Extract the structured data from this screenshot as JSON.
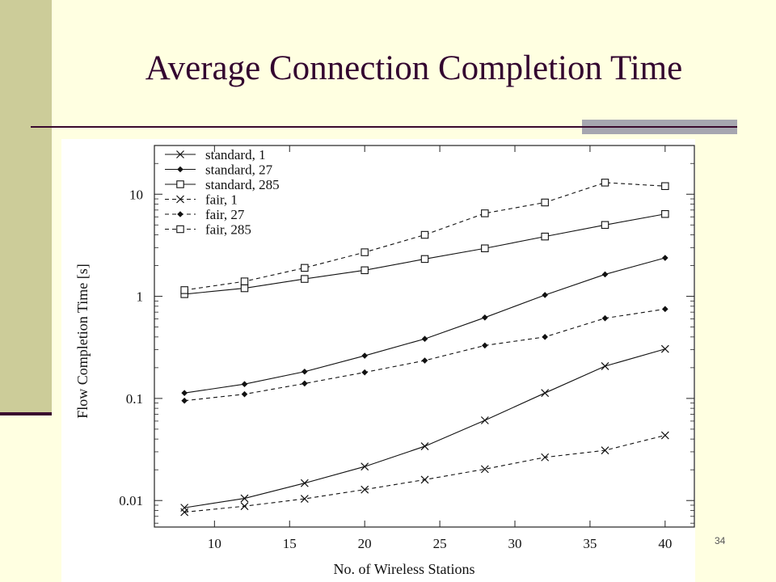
{
  "slide": {
    "title": "Average Connection Completion Time",
    "page_number": "34",
    "colors": {
      "background": "#FFFFE1",
      "sidebar": "#CCCC99",
      "title": "#33052F",
      "rule": "#3A0A2E"
    }
  },
  "chart_data": {
    "type": "line",
    "xlabel": "No. of Wireless Stations",
    "ylabel": "Flow Completion Time [s]",
    "yscale": "log",
    "xlim": [
      6,
      42
    ],
    "ylim": [
      0.0055,
      30
    ],
    "xticks": [
      10,
      15,
      20,
      25,
      30,
      35,
      40
    ],
    "yticks": [
      0.01,
      0.1,
      1,
      10
    ],
    "ytick_labels": [
      "0.01",
      "0.1",
      "1",
      "10"
    ],
    "legend_position": "top-left",
    "x": [
      8,
      12,
      16,
      20,
      24,
      28,
      32,
      36,
      40
    ],
    "series": [
      {
        "name": "standard, 1",
        "marker": "x",
        "line": "solid",
        "values": [
          0.0085,
          0.0105,
          0.0148,
          0.0215,
          0.034,
          0.061,
          0.113,
          0.207,
          0.305
        ]
      },
      {
        "name": "standard, 27",
        "marker": "diamond",
        "line": "solid",
        "values": [
          0.113,
          0.138,
          0.183,
          0.262,
          0.383,
          0.62,
          1.03,
          1.64,
          2.38
        ]
      },
      {
        "name": "standard, 285",
        "marker": "square",
        "line": "solid",
        "values": [
          1.05,
          1.2,
          1.48,
          1.8,
          2.32,
          2.95,
          3.85,
          5.0,
          6.4
        ]
      },
      {
        "name": "fair, 1",
        "marker": "x",
        "line": "dashed",
        "values": [
          0.0077,
          0.0088,
          0.0104,
          0.0128,
          0.016,
          0.0203,
          0.0265,
          0.031,
          0.0435
        ]
      },
      {
        "name": "fair, 27",
        "marker": "diamond",
        "line": "dashed",
        "values": [
          0.095,
          0.11,
          0.14,
          0.18,
          0.235,
          0.33,
          0.4,
          0.61,
          0.75
        ]
      },
      {
        "name": "fair, 285",
        "marker": "square",
        "line": "dashed",
        "values": [
          1.15,
          1.4,
          1.9,
          2.7,
          4.0,
          6.5,
          8.3,
          13.0,
          12.0
        ]
      }
    ]
  }
}
